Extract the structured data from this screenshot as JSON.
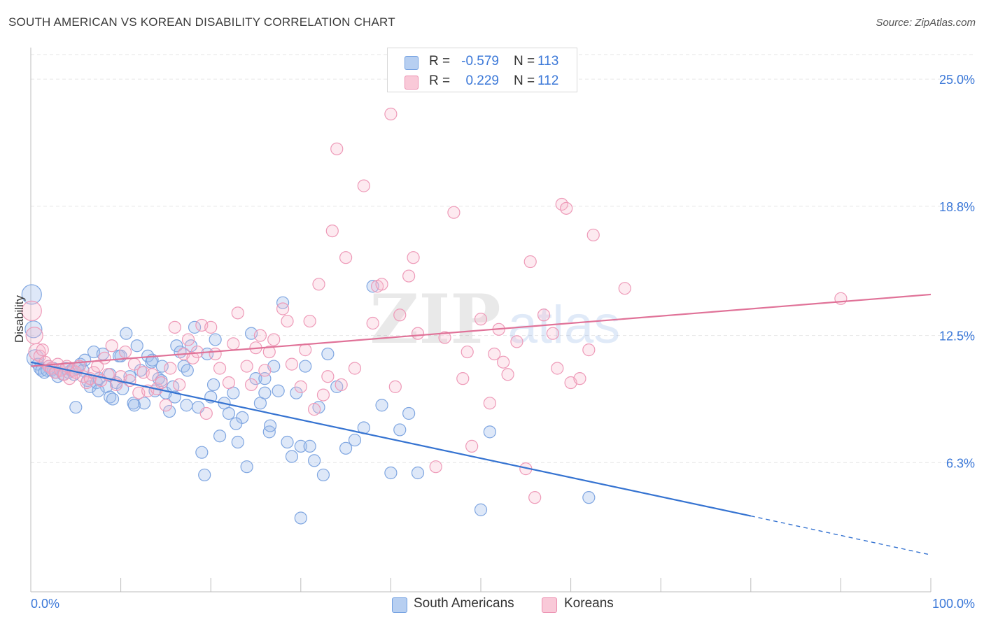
{
  "title": "SOUTH AMERICAN VS KOREAN DISABILITY CORRELATION CHART",
  "source": "Source: ZipAtlas.com",
  "watermark": {
    "zip": "ZIP",
    "atlas": "atlas"
  },
  "legend": {
    "r_label": "R =",
    "n_label": "N =",
    "rows": [
      {
        "r": "-0.579",
        "n": "113",
        "fill": "#b7cff1",
        "stroke": "#6f9ee0"
      },
      {
        "r": "0.229",
        "n": "112",
        "fill": "#f9c9d8",
        "stroke": "#ec8fb0"
      }
    ]
  },
  "bottom_legend": [
    "South Americans",
    "Koreans"
  ],
  "colors": {
    "blue_fill": "rgba(160,190,236,0.35)",
    "blue_stroke": "#7fa6e1",
    "blue_line": "#3573d1",
    "pink_fill": "rgba(247,186,206,0.3)",
    "pink_stroke": "#ee9ab8",
    "pink_line": "#e07298",
    "grid": "#e6e6e6",
    "tick_label": "#3b78d8"
  },
  "chart_data": {
    "type": "scatter",
    "title": "SOUTH AMERICAN VS KOREAN DISABILITY CORRELATION CHART",
    "xlabel": "",
    "ylabel": "Disability",
    "xlim": [
      0,
      100
    ],
    "ylim": [
      0,
      26.2
    ],
    "x_tick_labels": [
      "0.0%",
      "100.0%"
    ],
    "y_ticks": [
      6.3,
      12.5,
      18.8,
      25.0
    ],
    "y_tick_labels": [
      "6.3%",
      "12.5%",
      "18.8%",
      "25.0%"
    ],
    "grid": true,
    "legend_position": "top-center",
    "series": [
      {
        "name": "South Americans",
        "r": -0.579,
        "n": 113,
        "trend": {
          "x0": 0,
          "y0": 11.2,
          "x1": 80,
          "y1": 3.7,
          "dashed_to_x": 100,
          "dashed_to_y": 1.8
        },
        "points": [
          [
            0.1,
            14.5
          ],
          [
            0.3,
            12.8
          ],
          [
            0.5,
            11.4
          ],
          [
            0.8,
            11.1
          ],
          [
            1.0,
            10.9
          ],
          [
            1.2,
            10.8
          ],
          [
            1.5,
            10.7
          ],
          [
            1.8,
            10.8
          ],
          [
            2.0,
            11.0
          ],
          [
            2.3,
            10.8
          ],
          [
            2.5,
            10.9
          ],
          [
            2.8,
            10.7
          ],
          [
            3.0,
            10.5
          ],
          [
            3.3,
            10.8
          ],
          [
            3.6,
            10.6
          ],
          [
            3.9,
            10.9
          ],
          [
            4.2,
            10.7
          ],
          [
            4.5,
            10.8
          ],
          [
            4.8,
            10.6
          ],
          [
            5.2,
            10.9
          ],
          [
            5.5,
            11.1
          ],
          [
            5.8,
            10.8
          ],
          [
            6.0,
            11.3
          ],
          [
            6.3,
            10.3
          ],
          [
            6.6,
            10.0
          ],
          [
            7.0,
            11.7
          ],
          [
            7.3,
            10.2
          ],
          [
            7.6,
            10.4
          ],
          [
            8.0,
            11.6
          ],
          [
            8.4,
            10.0
          ],
          [
            8.8,
            9.5
          ],
          [
            9.1,
            9.4
          ],
          [
            9.5,
            10.2
          ],
          [
            9.8,
            11.5
          ],
          [
            10.2,
            9.9
          ],
          [
            10.6,
            12.6
          ],
          [
            11.0,
            10.5
          ],
          [
            11.4,
            9.2
          ],
          [
            11.8,
            12.0
          ],
          [
            12.2,
            10.8
          ],
          [
            12.6,
            9.2
          ],
          [
            13.0,
            11.5
          ],
          [
            13.4,
            11.2
          ],
          [
            13.8,
            9.8
          ],
          [
            14.2,
            10.4
          ],
          [
            14.6,
            11.0
          ],
          [
            15.0,
            9.7
          ],
          [
            15.4,
            8.8
          ],
          [
            15.8,
            10.0
          ],
          [
            16.2,
            12.0
          ],
          [
            16.6,
            11.7
          ],
          [
            17.0,
            11.0
          ],
          [
            17.4,
            10.8
          ],
          [
            17.8,
            12.0
          ],
          [
            18.2,
            12.9
          ],
          [
            18.6,
            9.0
          ],
          [
            19.0,
            6.8
          ],
          [
            19.6,
            11.6
          ],
          [
            20.0,
            9.5
          ],
          [
            20.5,
            12.3
          ],
          [
            21.0,
            7.6
          ],
          [
            21.5,
            9.2
          ],
          [
            22.0,
            8.7
          ],
          [
            22.5,
            9.7
          ],
          [
            23.0,
            7.3
          ],
          [
            23.5,
            8.5
          ],
          [
            24.0,
            6.1
          ],
          [
            24.5,
            12.6
          ],
          [
            25.0,
            10.4
          ],
          [
            25.5,
            9.2
          ],
          [
            26.0,
            9.7
          ],
          [
            26.5,
            7.8
          ],
          [
            27.0,
            11.0
          ],
          [
            27.5,
            9.8
          ],
          [
            28.0,
            14.1
          ],
          [
            28.5,
            7.3
          ],
          [
            29.0,
            6.6
          ],
          [
            29.5,
            9.7
          ],
          [
            30.0,
            7.1
          ],
          [
            30.5,
            11.0
          ],
          [
            31.0,
            7.1
          ],
          [
            31.5,
            6.4
          ],
          [
            32.0,
            9.0
          ],
          [
            32.5,
            5.7
          ],
          [
            33.0,
            11.6
          ],
          [
            34.0,
            10.0
          ],
          [
            35.0,
            7.0
          ],
          [
            36.0,
            7.4
          ],
          [
            37.0,
            8.0
          ],
          [
            38.0,
            14.9
          ],
          [
            39.0,
            9.1
          ],
          [
            40.0,
            5.8
          ],
          [
            41.0,
            7.9
          ],
          [
            42.0,
            8.7
          ],
          [
            43.0,
            5.8
          ],
          [
            50.0,
            4.0
          ],
          [
            51.0,
            7.8
          ],
          [
            62.0,
            4.6
          ],
          [
            26.6,
            8.1
          ],
          [
            30.0,
            3.6
          ],
          [
            19.3,
            5.7
          ],
          [
            10.0,
            11.5
          ],
          [
            14.5,
            10.3
          ],
          [
            17.3,
            9.1
          ],
          [
            22.8,
            8.2
          ],
          [
            26.0,
            10.4
          ],
          [
            5.0,
            9.0
          ],
          [
            7.5,
            9.8
          ],
          [
            16.0,
            9.5
          ],
          [
            20.3,
            10.1
          ],
          [
            11.5,
            9.1
          ],
          [
            8.8,
            10.6
          ],
          [
            13.5,
            11.3
          ]
        ]
      },
      {
        "name": "Koreans",
        "r": 0.229,
        "n": 112,
        "trend": {
          "x0": 0,
          "y0": 11.0,
          "x1": 100,
          "y1": 14.5
        },
        "points": [
          [
            0.1,
            13.7
          ],
          [
            0.4,
            12.5
          ],
          [
            0.7,
            11.7
          ],
          [
            1.0,
            11.5
          ],
          [
            1.3,
            11.8
          ],
          [
            1.6,
            11.2
          ],
          [
            2.0,
            11.0
          ],
          [
            2.3,
            10.9
          ],
          [
            2.7,
            10.7
          ],
          [
            3.0,
            11.1
          ],
          [
            3.3,
            10.8
          ],
          [
            3.7,
            10.6
          ],
          [
            4.0,
            11.0
          ],
          [
            4.3,
            10.4
          ],
          [
            4.7,
            10.8
          ],
          [
            5.0,
            10.7
          ],
          [
            5.4,
            11.0
          ],
          [
            5.8,
            10.5
          ],
          [
            6.2,
            10.2
          ],
          [
            6.6,
            10.4
          ],
          [
            7.0,
            10.7
          ],
          [
            7.4,
            11.0
          ],
          [
            7.8,
            10.3
          ],
          [
            8.2,
            11.4
          ],
          [
            8.6,
            10.6
          ],
          [
            9.0,
            12.0
          ],
          [
            9.5,
            10.1
          ],
          [
            10.0,
            10.5
          ],
          [
            10.5,
            11.7
          ],
          [
            11.0,
            10.3
          ],
          [
            11.5,
            11.1
          ],
          [
            12.0,
            9.7
          ],
          [
            12.5,
            10.7
          ],
          [
            13.0,
            9.8
          ],
          [
            13.5,
            10.6
          ],
          [
            14.0,
            9.9
          ],
          [
            14.5,
            10.2
          ],
          [
            15.0,
            9.1
          ],
          [
            15.5,
            10.9
          ],
          [
            16.0,
            12.9
          ],
          [
            16.5,
            10.1
          ],
          [
            17.0,
            11.6
          ],
          [
            17.5,
            12.3
          ],
          [
            18.0,
            11.4
          ],
          [
            18.5,
            11.7
          ],
          [
            19.0,
            13.0
          ],
          [
            19.5,
            8.7
          ],
          [
            20.0,
            12.9
          ],
          [
            20.5,
            11.6
          ],
          [
            21.0,
            10.9
          ],
          [
            22.0,
            10.2
          ],
          [
            22.5,
            12.1
          ],
          [
            23.0,
            13.6
          ],
          [
            24.0,
            11.0
          ],
          [
            24.5,
            10.1
          ],
          [
            25.0,
            11.9
          ],
          [
            25.5,
            12.5
          ],
          [
            26.0,
            10.8
          ],
          [
            26.5,
            11.7
          ],
          [
            27.0,
            12.3
          ],
          [
            28.0,
            13.8
          ],
          [
            28.5,
            13.2
          ],
          [
            29.0,
            11.1
          ],
          [
            30.0,
            10.0
          ],
          [
            30.5,
            11.8
          ],
          [
            31.0,
            13.2
          ],
          [
            31.5,
            8.9
          ],
          [
            32.0,
            15.0
          ],
          [
            32.5,
            9.6
          ],
          [
            33.0,
            10.5
          ],
          [
            33.5,
            17.6
          ],
          [
            34.0,
            21.6
          ],
          [
            34.5,
            10.1
          ],
          [
            35.0,
            16.3
          ],
          [
            36.0,
            10.9
          ],
          [
            37.0,
            19.8
          ],
          [
            38.0,
            13.1
          ],
          [
            38.5,
            14.9
          ],
          [
            39.0,
            15.0
          ],
          [
            40.0,
            23.3
          ],
          [
            40.5,
            10.0
          ],
          [
            41.0,
            13.5
          ],
          [
            42.0,
            15.4
          ],
          [
            42.5,
            16.3
          ],
          [
            43.0,
            12.6
          ],
          [
            45.0,
            6.1
          ],
          [
            46.0,
            12.4
          ],
          [
            47.0,
            18.5
          ],
          [
            48.0,
            10.4
          ],
          [
            48.5,
            11.7
          ],
          [
            49.0,
            7.1
          ],
          [
            50.0,
            13.3
          ],
          [
            51.0,
            9.2
          ],
          [
            51.5,
            11.6
          ],
          [
            52.0,
            12.8
          ],
          [
            52.5,
            11.2
          ],
          [
            53.0,
            10.6
          ],
          [
            54.0,
            12.2
          ],
          [
            55.0,
            6.0
          ],
          [
            55.5,
            16.1
          ],
          [
            56.0,
            4.6
          ],
          [
            57.0,
            13.5
          ],
          [
            58.0,
            12.6
          ],
          [
            58.5,
            10.9
          ],
          [
            59.0,
            18.9
          ],
          [
            59.5,
            18.7
          ],
          [
            60.0,
            10.2
          ],
          [
            61.0,
            10.4
          ],
          [
            62.0,
            11.8
          ],
          [
            62.5,
            17.4
          ],
          [
            66.0,
            14.8
          ],
          [
            90.0,
            14.3
          ]
        ]
      }
    ]
  }
}
